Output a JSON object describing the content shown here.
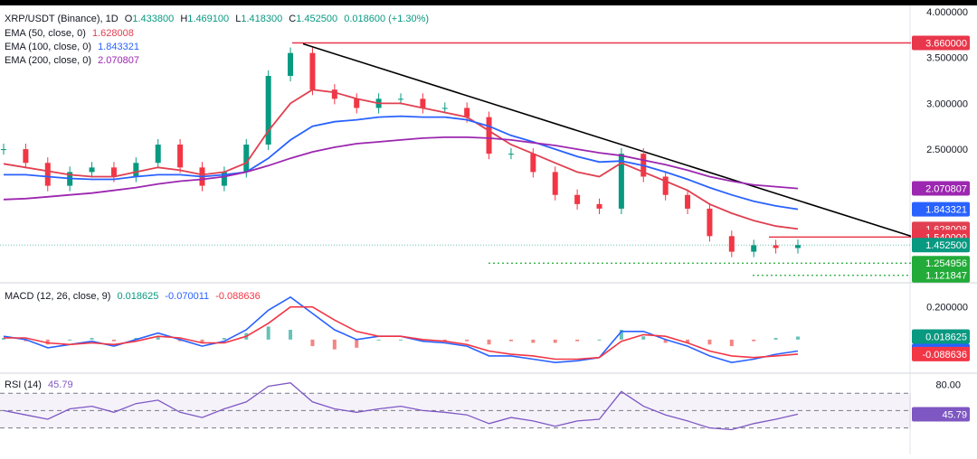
{
  "colors": {
    "up": "#089981",
    "down": "#f23645",
    "ema50": "#e04050",
    "ema100": "#2962ff",
    "ema200": "#9c27b0",
    "trend": "#000000",
    "resist": "#e8364a",
    "support": "#22ab38",
    "macd": "#2962ff",
    "signal": "#f23645",
    "rsi": "#7e57c2"
  },
  "header": {
    "symbol": "XRP/USDT (Binance), 1D",
    "o_label": "O",
    "o_value": "1.433800",
    "h_label": "H",
    "h_value": "1.469100",
    "l_label": "L",
    "l_value": "1.418300",
    "c_label": "C",
    "c_value": "1.452500",
    "change": "0.018600 (+1.30%)"
  },
  "indicators": [
    {
      "label": "EMA (50, close, 0)",
      "value": "1.628008",
      "color": "#e04050"
    },
    {
      "label": "EMA (100, close, 0)",
      "value": "1.843321",
      "color": "#2962ff"
    },
    {
      "label": "EMA (200, close, 0)",
      "value": "2.070807",
      "color": "#9c27b0"
    }
  ],
  "macd_header": {
    "label": "MACD (12, 26, close, 9)",
    "v1": "0.018625",
    "v2": "-0.070011",
    "v3": "-0.088636"
  },
  "rsi_header": {
    "label": "RSI (14)",
    "value": "45.79"
  },
  "chart_data": {
    "type": "line",
    "price_ticks": [
      "4.000000",
      "3.500000",
      "3.000000",
      "2.500000"
    ],
    "price_tick_values": [
      4.0,
      3.5,
      3.0,
      2.5
    ],
    "ylim": [
      1.05,
      4.05
    ],
    "badges": [
      {
        "text": "3.660000",
        "value": 3.66,
        "color": "#e8364a"
      },
      {
        "text": "2.070807",
        "value": 2.070807,
        "color": "#9c27b0"
      },
      {
        "text": "1.843321",
        "value": 1.843321,
        "color": "#2962ff"
      },
      {
        "text": "1.628008",
        "value": 1.628008,
        "color": "#e04050"
      },
      {
        "text": "1.540000",
        "value": 1.54,
        "color": "#e8364a"
      },
      {
        "text": "1.452500",
        "value": 1.4525,
        "color": "#089981"
      },
      {
        "text": "1.254956",
        "value": 1.254956,
        "color": "#22ab38"
      },
      {
        "text": "1.121847",
        "value": 1.121847,
        "color": "#22ab38"
      }
    ],
    "levels": {
      "resistance_high": 3.66,
      "resistance_low": 1.54,
      "support_1": 1.254956,
      "support_2": 1.121847,
      "last": 1.4525
    },
    "trendline": {
      "from_value": 3.66,
      "to_value": 1.54
    },
    "series": [
      {
        "name": "EMA (50, close, 0)",
        "values": [
          2.34,
          2.3,
          2.26,
          2.22,
          2.2,
          2.2,
          2.25,
          2.3,
          2.27,
          2.22,
          2.25,
          2.35,
          2.7,
          3.0,
          3.15,
          3.12,
          3.05,
          3.0,
          3.0,
          2.95,
          2.9,
          2.85,
          2.7,
          2.55,
          2.45,
          2.35,
          2.25,
          2.2,
          2.35,
          2.25,
          2.15,
          2.05,
          1.9,
          1.8,
          1.72,
          1.66,
          1.628
        ]
      },
      {
        "name": "EMA (100, close, 0)",
        "values": [
          2.22,
          2.22,
          2.2,
          2.18,
          2.17,
          2.17,
          2.2,
          2.22,
          2.22,
          2.2,
          2.22,
          2.25,
          2.4,
          2.6,
          2.75,
          2.8,
          2.82,
          2.85,
          2.86,
          2.85,
          2.85,
          2.82,
          2.75,
          2.65,
          2.58,
          2.5,
          2.42,
          2.36,
          2.37,
          2.32,
          2.25,
          2.17,
          2.08,
          2.0,
          1.93,
          1.88,
          1.843
        ]
      },
      {
        "name": "EMA (200, close, 0)",
        "values": [
          1.95,
          1.96,
          1.98,
          2.0,
          2.02,
          2.05,
          2.08,
          2.12,
          2.15,
          2.17,
          2.2,
          2.25,
          2.32,
          2.4,
          2.47,
          2.52,
          2.56,
          2.58,
          2.6,
          2.62,
          2.63,
          2.63,
          2.62,
          2.6,
          2.57,
          2.54,
          2.5,
          2.46,
          2.43,
          2.38,
          2.33,
          2.27,
          2.2,
          2.15,
          2.11,
          2.09,
          2.07
        ]
      }
    ],
    "close": [
      2.5,
      2.35,
      2.1,
      2.25,
      2.3,
      2.2,
      2.35,
      2.55,
      2.3,
      2.1,
      2.25,
      2.55,
      3.3,
      3.55,
      3.15,
      3.05,
      2.95,
      3.05,
      3.05,
      2.95,
      2.95,
      2.85,
      2.45,
      2.45,
      2.25,
      2.0,
      1.9,
      1.85,
      2.45,
      2.2,
      2.0,
      1.85,
      1.55,
      1.38,
      1.45,
      1.42,
      1.4525
    ],
    "macd": {
      "ticks": [
        "0.200000"
      ],
      "tick_values": [
        0.2
      ],
      "ylim": [
        -0.2,
        0.32
      ],
      "badges": [
        {
          "text": "0.018625",
          "value": 0.018625,
          "color": "#089981"
        },
        {
          "text": "-0.070011",
          "value": -0.070011,
          "color": "#2962ff"
        },
        {
          "text": "-0.088636",
          "value": -0.088636,
          "color": "#f23645"
        }
      ],
      "macd": [
        0.02,
        0.0,
        -0.05,
        -0.03,
        -0.01,
        -0.04,
        0.0,
        0.04,
        0.0,
        -0.04,
        -0.01,
        0.06,
        0.18,
        0.26,
        0.16,
        0.06,
        0.0,
        0.02,
        0.02,
        -0.01,
        -0.02,
        -0.04,
        -0.1,
        -0.1,
        -0.12,
        -0.14,
        -0.13,
        -0.11,
        0.05,
        0.05,
        0.0,
        -0.04,
        -0.1,
        -0.14,
        -0.12,
        -0.09,
        -0.07
      ],
      "signal": [
        0.01,
        0.01,
        -0.02,
        -0.03,
        -0.02,
        -0.03,
        -0.01,
        0.02,
        0.01,
        -0.02,
        -0.02,
        0.02,
        0.1,
        0.2,
        0.2,
        0.12,
        0.05,
        0.02,
        0.02,
        0.0,
        -0.01,
        -0.03,
        -0.07,
        -0.09,
        -0.1,
        -0.12,
        -0.12,
        -0.11,
        -0.01,
        0.03,
        0.02,
        -0.02,
        -0.07,
        -0.1,
        -0.11,
        -0.1,
        -0.0886
      ]
    },
    "rsi": {
      "ticks": [
        "80.00"
      ],
      "tick_values": [
        80
      ],
      "ylim": [
        15,
        90
      ],
      "bands": [
        70,
        50,
        30
      ],
      "badge": {
        "text": "45.79",
        "value": 45.79,
        "color": "#7e57c2"
      },
      "values": [
        50,
        45,
        40,
        52,
        55,
        48,
        58,
        62,
        48,
        42,
        52,
        60,
        78,
        82,
        60,
        52,
        48,
        52,
        55,
        50,
        48,
        45,
        35,
        42,
        38,
        32,
        38,
        40,
        72,
        55,
        45,
        38,
        30,
        28,
        35,
        40,
        45.79
      ]
    }
  }
}
